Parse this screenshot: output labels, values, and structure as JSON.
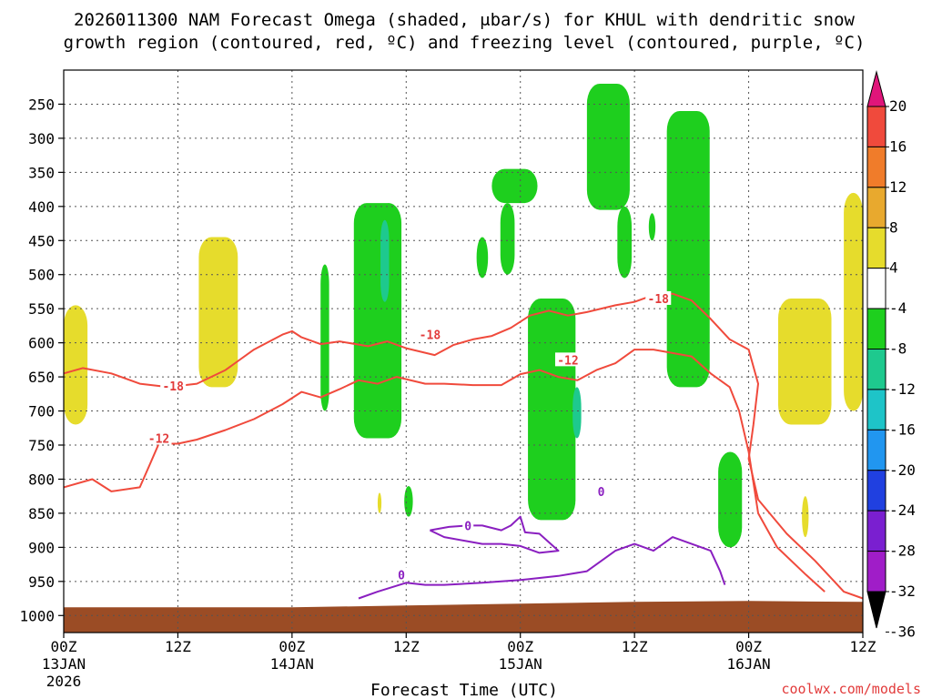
{
  "chart_data": {
    "type": "time-height",
    "title_line1": "2026011300 NAM Forecast Omega (shaded, μbar/s) for KHUL with dendritic snow",
    "title_line2": "growth region (contoured, red, ºC) and freezing level (contoured, purple, ºC)",
    "xlabel": "Forecast Time (UTC)",
    "credit": "coolwx.com/models",
    "x_range_hours": [
      0,
      84
    ],
    "y_range_hpa": [
      200,
      1025
    ],
    "x_ticks": [
      {
        "hour": 0,
        "label": "00Z",
        "sub": "13JAN",
        "sub2": "2026"
      },
      {
        "hour": 12,
        "label": "12Z",
        "sub": "",
        "sub2": ""
      },
      {
        "hour": 24,
        "label": "00Z",
        "sub": "14JAN",
        "sub2": ""
      },
      {
        "hour": 36,
        "label": "12Z",
        "sub": "",
        "sub2": ""
      },
      {
        "hour": 48,
        "label": "00Z",
        "sub": "15JAN",
        "sub2": ""
      },
      {
        "hour": 60,
        "label": "12Z",
        "sub": "",
        "sub2": ""
      },
      {
        "hour": 72,
        "label": "00Z",
        "sub": "16JAN",
        "sub2": ""
      },
      {
        "hour": 84,
        "label": "12Z",
        "sub": "",
        "sub2": ""
      }
    ],
    "y_ticks": [
      {
        "p": 250,
        "label": "250"
      },
      {
        "p": 300,
        "label": "300"
      },
      {
        "p": 350,
        "label": "350"
      },
      {
        "p": 400,
        "label": "400"
      },
      {
        "p": 450,
        "label": "450"
      },
      {
        "p": 500,
        "label": "500"
      },
      {
        "p": 550,
        "label": "550"
      },
      {
        "p": 600,
        "label": "600"
      },
      {
        "p": 650,
        "label": "650"
      },
      {
        "p": 700,
        "label": "700"
      },
      {
        "p": 750,
        "label": "750"
      },
      {
        "p": 800,
        "label": "800"
      },
      {
        "p": 850,
        "label": "850"
      },
      {
        "p": 900,
        "label": "900"
      },
      {
        "p": 950,
        "label": "950"
      },
      {
        "p": 1000,
        "label": "1000"
      }
    ],
    "colorbar": {
      "labels": [
        "20",
        "16",
        "12",
        "8",
        "4",
        "-4",
        "-8",
        "-12",
        "-16",
        "-20",
        "-24",
        "-28",
        "-32",
        "-36"
      ],
      "bins": [
        {
          "from": 20,
          "to": 24,
          "color": "#e0157a"
        },
        {
          "from": 16,
          "to": 20,
          "color": "#f04a3c"
        },
        {
          "from": 12,
          "to": 16,
          "color": "#f07c2a"
        },
        {
          "from": 8,
          "to": 12,
          "color": "#e8a92e"
        },
        {
          "from": 4,
          "to": 8,
          "color": "#e6dc2c"
        },
        {
          "from": -4,
          "to": 4,
          "color": "#ffffff"
        },
        {
          "from": -8,
          "to": -4,
          "color": "#1ecf1e"
        },
        {
          "from": -12,
          "to": -8,
          "color": "#1ec98e"
        },
        {
          "from": -16,
          "to": -12,
          "color": "#1ec4c8"
        },
        {
          "from": -20,
          "to": -16,
          "color": "#2196f0"
        },
        {
          "from": -24,
          "to": -20,
          "color": "#2040e0"
        },
        {
          "from": -28,
          "to": -24,
          "color": "#7a1fd0"
        },
        {
          "from": -32,
          "to": -28,
          "color": "#a01dc8"
        },
        {
          "from": -36,
          "to": -32,
          "color": "#a8a8a8"
        }
      ],
      "low_arrow_color": "#000000",
      "high_arrow_color": "#e0157a"
    },
    "contour_labels": {
      "red": [
        {
          "hour": 11.5,
          "p": 663,
          "text": "-18"
        },
        {
          "hour": 10.0,
          "p": 740,
          "text": "-12"
        },
        {
          "hour": 38.5,
          "p": 588,
          "text": "-18"
        },
        {
          "hour": 53.0,
          "p": 625,
          "text": "-12"
        },
        {
          "hour": 62.5,
          "p": 535,
          "text": "-18"
        }
      ],
      "purple": [
        {
          "hour": 35.5,
          "p": 940,
          "text": "0"
        },
        {
          "hour": 42.5,
          "p": 868,
          "text": "0"
        },
        {
          "hour": 56.5,
          "p": 818,
          "text": "0"
        }
      ]
    },
    "series": [
      {
        "name": "-18C isotherm",
        "color": "#f04a3c",
        "points": [
          [
            0,
            645
          ],
          [
            2,
            637
          ],
          [
            5,
            645
          ],
          [
            8,
            660
          ],
          [
            11,
            665
          ],
          [
            14,
            660
          ],
          [
            17,
            640
          ],
          [
            20,
            610
          ],
          [
            23,
            588
          ],
          [
            24,
            583
          ],
          [
            25,
            592
          ],
          [
            27,
            602
          ],
          [
            29,
            598
          ],
          [
            32,
            605
          ],
          [
            34,
            598
          ],
          [
            36,
            608
          ],
          [
            39,
            618
          ],
          [
            41,
            603
          ],
          [
            43,
            595
          ],
          [
            45,
            590
          ],
          [
            47,
            578
          ],
          [
            49,
            560
          ],
          [
            51,
            553
          ],
          [
            53,
            560
          ],
          [
            55,
            555
          ],
          [
            58,
            545
          ],
          [
            60,
            540
          ],
          [
            62,
            530
          ],
          [
            64,
            528
          ],
          [
            66,
            538
          ],
          [
            68,
            565
          ],
          [
            70,
            595
          ],
          [
            72,
            610
          ],
          [
            73,
            660
          ],
          [
            72.5,
            720
          ],
          [
            72,
            770
          ],
          [
            73,
            830
          ],
          [
            76,
            880
          ],
          [
            79,
            920
          ],
          [
            82,
            965
          ],
          [
            84,
            975
          ]
        ]
      },
      {
        "name": "-12C isotherm",
        "color": "#f04a3c",
        "points": [
          [
            0,
            812
          ],
          [
            3,
            800
          ],
          [
            5,
            818
          ],
          [
            8,
            812
          ],
          [
            9,
            780
          ],
          [
            10,
            748
          ],
          [
            12,
            748
          ],
          [
            14,
            742
          ],
          [
            17,
            728
          ],
          [
            20,
            712
          ],
          [
            23,
            690
          ],
          [
            25,
            672
          ],
          [
            27,
            680
          ],
          [
            29,
            668
          ],
          [
            31,
            655
          ],
          [
            33,
            660
          ],
          [
            35,
            650
          ],
          [
            38,
            660
          ],
          [
            40,
            660
          ],
          [
            43,
            662
          ],
          [
            46,
            662
          ],
          [
            48,
            646
          ],
          [
            50,
            640
          ],
          [
            52,
            650
          ],
          [
            54,
            655
          ],
          [
            56,
            640
          ],
          [
            58,
            630
          ],
          [
            60,
            610
          ],
          [
            62,
            610
          ],
          [
            64,
            615
          ],
          [
            66,
            620
          ],
          [
            68,
            645
          ],
          [
            70,
            665
          ],
          [
            71,
            700
          ],
          [
            72,
            760
          ],
          [
            73,
            850
          ],
          [
            75,
            900
          ],
          [
            78,
            940
          ],
          [
            80,
            965
          ]
        ]
      },
      {
        "name": "0C freezing level",
        "color": "#8a1fc0",
        "points": [
          [
            31,
            975
          ],
          [
            33,
            965
          ],
          [
            36,
            952
          ],
          [
            38,
            955
          ],
          [
            40,
            955
          ],
          [
            44,
            952
          ],
          [
            48,
            948
          ],
          [
            52,
            942
          ],
          [
            55,
            935
          ],
          [
            58,
            905
          ],
          [
            60,
            895
          ],
          [
            62,
            905
          ],
          [
            64,
            885
          ],
          [
            66,
            895
          ],
          [
            68,
            905
          ],
          [
            69,
            935
          ],
          [
            69.5,
            955
          ]
        ]
      },
      {
        "name": "0C freezing level (inner)",
        "color": "#8a1fc0",
        "points": [
          [
            38.5,
            875
          ],
          [
            40.5,
            870
          ],
          [
            42.5,
            868
          ],
          [
            44,
            868
          ],
          [
            46,
            875
          ],
          [
            47,
            868
          ],
          [
            48,
            855
          ],
          [
            48.5,
            878
          ],
          [
            50,
            880
          ],
          [
            52,
            905
          ],
          [
            50,
            908
          ],
          [
            48,
            898
          ],
          [
            46,
            895
          ],
          [
            44,
            895
          ],
          [
            42,
            890
          ],
          [
            40,
            885
          ],
          [
            38.5,
            875
          ]
        ]
      }
    ],
    "shaded_regions": [
      {
        "value": -5,
        "color": "#1ecf1e",
        "hours": [
          33.6,
          34.8
        ],
        "p_top": 395,
        "p_bot": 715
      },
      {
        "value": -5,
        "color": "#1ecf1e",
        "hours": [
          30.5,
          35.5
        ],
        "p_top": 395,
        "p_bot": 740
      },
      {
        "value": -5,
        "color": "#1ecf1e",
        "hours": [
          27.0,
          27.9
        ],
        "p_top": 485,
        "p_bot": 700
      },
      {
        "value": -5,
        "color": "#1ecf1e",
        "hours": [
          35.8,
          36.7
        ],
        "p_top": 810,
        "p_bot": 855
      },
      {
        "value": -5,
        "color": "#1ecf1e",
        "hours": [
          45.0,
          49.8
        ],
        "p_top": 345,
        "p_bot": 395
      },
      {
        "value": -5,
        "color": "#1ecf1e",
        "hours": [
          45.9,
          47.4
        ],
        "p_top": 395,
        "p_bot": 500
      },
      {
        "value": -5,
        "color": "#1ecf1e",
        "hours": [
          43.4,
          44.6
        ],
        "p_top": 445,
        "p_bot": 505
      },
      {
        "value": -5,
        "color": "#1ecf1e",
        "hours": [
          48.8,
          53.8
        ],
        "p_top": 535,
        "p_bot": 860
      },
      {
        "value": -5,
        "color": "#1ecf1e",
        "hours": [
          55.0,
          59.5
        ],
        "p_top": 220,
        "p_bot": 405
      },
      {
        "value": -5,
        "color": "#1ecf1e",
        "hours": [
          58.2,
          59.7
        ],
        "p_top": 400,
        "p_bot": 505
      },
      {
        "value": -5,
        "color": "#1ecf1e",
        "hours": [
          63.4,
          67.9
        ],
        "p_top": 260,
        "p_bot": 665
      },
      {
        "value": -5,
        "color": "#1ecf1e",
        "hours": [
          61.5,
          62.2
        ],
        "p_top": 410,
        "p_bot": 450
      },
      {
        "value": -5,
        "color": "#1ecf1e",
        "hours": [
          68.8,
          71.3
        ],
        "p_top": 760,
        "p_bot": 900
      },
      {
        "value": -10,
        "color": "#1ec98e",
        "hours": [
          33.3,
          34.2
        ],
        "p_top": 420,
        "p_bot": 540
      },
      {
        "value": -10,
        "color": "#1ec98e",
        "hours": [
          53.5,
          54.4
        ],
        "p_top": 665,
        "p_bot": 740
      },
      {
        "value": 6,
        "color": "#e6dc2c",
        "hours": [
          0.0,
          2.5
        ],
        "p_top": 545,
        "p_bot": 720
      },
      {
        "value": 6,
        "color": "#e6dc2c",
        "hours": [
          14.2,
          18.3
        ],
        "p_top": 445,
        "p_bot": 665
      },
      {
        "value": 6,
        "color": "#e6dc2c",
        "hours": [
          75.1,
          80.7
        ],
        "p_top": 535,
        "p_bot": 720
      },
      {
        "value": 6,
        "color": "#e6dc2c",
        "hours": [
          82.0,
          84.0
        ],
        "p_top": 380,
        "p_bot": 700
      },
      {
        "value": 6,
        "color": "#e6dc2c",
        "hours": [
          77.6,
          78.3
        ],
        "p_top": 825,
        "p_bot": 885
      },
      {
        "value": 6,
        "color": "#e6dc2c",
        "hours": [
          33.0,
          33.4
        ],
        "p_top": 820,
        "p_bot": 850
      }
    ],
    "terrain": {
      "color": "#9b4c25",
      "label": "ground (below surface pressure)",
      "surface_hpa_start": 988,
      "surface_hpa_end": 980
    }
  }
}
